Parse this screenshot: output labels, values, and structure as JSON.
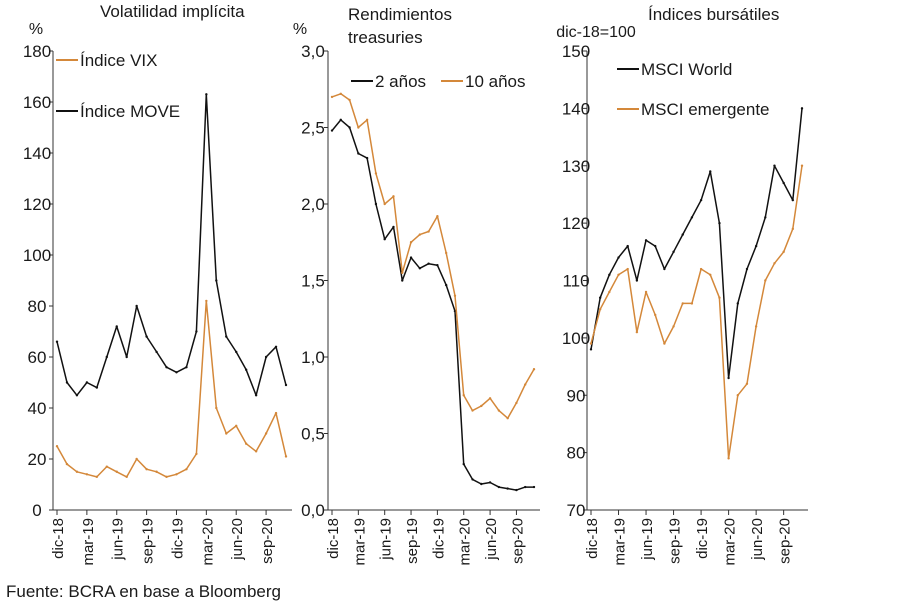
{
  "source": "Fuente: BCRA en base a Bloomberg",
  "chart_data": [
    {
      "type": "line",
      "title": "Volatilidad implícita",
      "unit": "%",
      "ylim": [
        0,
        180
      ],
      "yticks": [
        "0",
        "20",
        "40",
        "60",
        "80",
        "100",
        "120",
        "140",
        "160",
        "180"
      ],
      "xticks": [
        "dic-18",
        "mar-19",
        "jun-19",
        "sep-19",
        "dic-19",
        "mar-20",
        "jun-20",
        "sep-20"
      ],
      "legend_position": "top-left",
      "grid": false,
      "series": [
        {
          "name": "Índice VIX",
          "color": "#d4883a",
          "x": [
            "dic-18",
            "ene-19",
            "feb-19",
            "mar-19",
            "abr-19",
            "may-19",
            "jun-19",
            "jul-19",
            "ago-19",
            "sep-19",
            "oct-19",
            "nov-19",
            "dic-19",
            "ene-20",
            "feb-20",
            "mar-20",
            "abr-20",
            "may-20",
            "jun-20",
            "jul-20",
            "ago-20",
            "sep-20",
            "oct-20",
            "nov-20"
          ],
          "values": [
            25,
            18,
            15,
            14,
            13,
            17,
            15,
            13,
            20,
            16,
            15,
            13,
            14,
            16,
            22,
            82,
            40,
            30,
            33,
            26,
            23,
            30,
            38,
            21
          ]
        },
        {
          "name": "Índice MOVE",
          "color": "#111111",
          "x": [
            "dic-18",
            "ene-19",
            "feb-19",
            "mar-19",
            "abr-19",
            "may-19",
            "jun-19",
            "jul-19",
            "ago-19",
            "sep-19",
            "oct-19",
            "nov-19",
            "dic-19",
            "ene-20",
            "feb-20",
            "mar-20",
            "abr-20",
            "may-20",
            "jun-20",
            "jul-20",
            "ago-20",
            "sep-20",
            "oct-20",
            "nov-20"
          ],
          "values": [
            66,
            50,
            45,
            50,
            48,
            60,
            72,
            60,
            80,
            68,
            62,
            56,
            54,
            56,
            70,
            163,
            90,
            68,
            62,
            55,
            45,
            60,
            64,
            49
          ]
        }
      ]
    },
    {
      "type": "line",
      "title": "Rendimientos treasuries",
      "unit": "%",
      "ylim": [
        0,
        3
      ],
      "yticks": [
        "0,0",
        "0,5",
        "1,0",
        "1,5",
        "2,0",
        "2,5",
        "3,0"
      ],
      "xticks": [
        "dic-18",
        "mar-19",
        "jun-19",
        "sep-19",
        "dic-19",
        "mar-20",
        "jun-20",
        "sep-20"
      ],
      "legend_position": "top",
      "grid": false,
      "series": [
        {
          "name": "2 años",
          "color": "#111111",
          "x": [
            "dic-18",
            "ene-19",
            "feb-19",
            "mar-19",
            "abr-19",
            "may-19",
            "jun-19",
            "jul-19",
            "ago-19",
            "sep-19",
            "oct-19",
            "nov-19",
            "dic-19",
            "ene-20",
            "feb-20",
            "mar-20",
            "abr-20",
            "may-20",
            "jun-20",
            "jul-20",
            "ago-20",
            "sep-20",
            "oct-20",
            "nov-20"
          ],
          "values": [
            2.48,
            2.55,
            2.5,
            2.33,
            2.3,
            2.0,
            1.77,
            1.85,
            1.5,
            1.65,
            1.58,
            1.61,
            1.6,
            1.47,
            1.3,
            0.3,
            0.2,
            0.17,
            0.18,
            0.15,
            0.14,
            0.13,
            0.15,
            0.15
          ]
        },
        {
          "name": "10 años",
          "color": "#d4883a",
          "x": [
            "dic-18",
            "ene-19",
            "feb-19",
            "mar-19",
            "abr-19",
            "may-19",
            "jun-19",
            "jul-19",
            "ago-19",
            "sep-19",
            "oct-19",
            "nov-19",
            "dic-19",
            "ene-20",
            "feb-20",
            "mar-20",
            "abr-20",
            "may-20",
            "jun-20",
            "jul-20",
            "ago-20",
            "sep-20",
            "oct-20",
            "nov-20"
          ],
          "values": [
            2.7,
            2.72,
            2.68,
            2.5,
            2.55,
            2.2,
            2.0,
            2.05,
            1.55,
            1.75,
            1.8,
            1.82,
            1.92,
            1.68,
            1.4,
            0.75,
            0.65,
            0.68,
            0.73,
            0.65,
            0.6,
            0.7,
            0.82,
            0.92
          ]
        }
      ]
    },
    {
      "type": "line",
      "title": "Índices bursátiles",
      "unit": "dic-18=100",
      "ylim": [
        70,
        150
      ],
      "yticks": [
        "70",
        "80",
        "90",
        "100",
        "110",
        "120",
        "130",
        "140",
        "150"
      ],
      "xticks": [
        "dic-18",
        "mar-19",
        "jun-19",
        "sep-19",
        "dic-19",
        "mar-20",
        "jun-20",
        "sep-20"
      ],
      "legend_position": "top-left",
      "grid": false,
      "series": [
        {
          "name": "MSCI World",
          "color": "#111111",
          "x": [
            "dic-18",
            "ene-19",
            "feb-19",
            "mar-19",
            "abr-19",
            "may-19",
            "jun-19",
            "jul-19",
            "ago-19",
            "sep-19",
            "oct-19",
            "nov-19",
            "dic-19",
            "ene-20",
            "feb-20",
            "mar-20",
            "abr-20",
            "may-20",
            "jun-20",
            "jul-20",
            "ago-20",
            "sep-20",
            "oct-20",
            "nov-20"
          ],
          "values": [
            98,
            107,
            111,
            114,
            116,
            110,
            117,
            116,
            112,
            115,
            118,
            121,
            124,
            129,
            120,
            93,
            106,
            112,
            116,
            121,
            130,
            127,
            124,
            140
          ]
        },
        {
          "name": "MSCI emergente",
          "color": "#d4883a",
          "x": [
            "dic-18",
            "ene-19",
            "feb-19",
            "mar-19",
            "abr-19",
            "may-19",
            "jun-19",
            "jul-19",
            "ago-19",
            "sep-19",
            "oct-19",
            "nov-19",
            "dic-19",
            "ene-20",
            "feb-20",
            "mar-20",
            "abr-20",
            "may-20",
            "jun-20",
            "jul-20",
            "ago-20",
            "sep-20",
            "oct-20",
            "nov-20"
          ],
          "values": [
            99,
            105,
            108,
            111,
            112,
            101,
            108,
            104,
            99,
            102,
            106,
            106,
            112,
            111,
            107,
            79,
            90,
            92,
            102,
            110,
            113,
            115,
            119,
            130
          ]
        }
      ]
    }
  ]
}
